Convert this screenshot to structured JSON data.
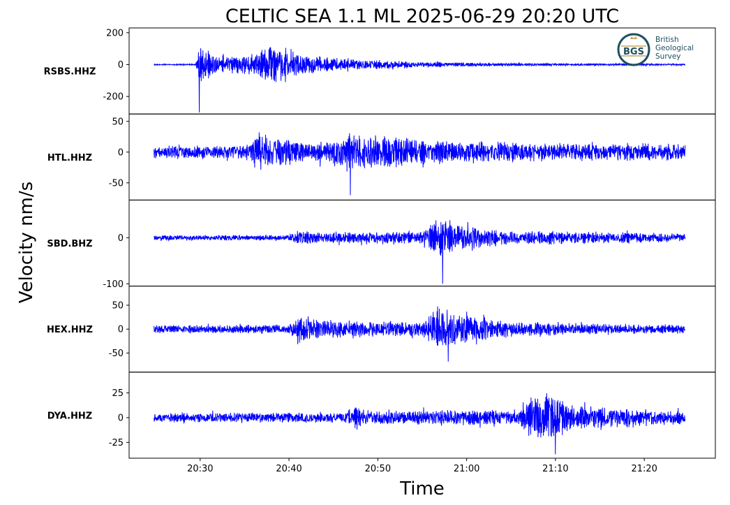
{
  "title": "CELTIC SEA 1.1 ML   2025-06-29 20:20 UTC",
  "xlabel": "Time",
  "ylabel": "Velocity nm/s",
  "logo": {
    "initials": "BGS",
    "line1": "British",
    "line2": "Geological",
    "line3": "Survey"
  },
  "colors": {
    "trace": "#0000ff",
    "frame": "#000000",
    "logo_ring": "#1d4f5e",
    "logo_accent": "#c9a55a"
  },
  "chart_data": {
    "type": "line",
    "xlim": [
      "20:22",
      "21:28"
    ],
    "x_ticks": [
      "20:30",
      "20:40",
      "20:50",
      "21:00",
      "21:10",
      "21:20"
    ],
    "grid": false,
    "legend": "none",
    "trace_start": "20:24.8",
    "trace_end": "21:24.6",
    "panels": [
      {
        "station": "RSBS.HHZ",
        "ylim": [
          -310,
          230
        ],
        "yticks": [
          {
            "value": 200,
            "label": "200"
          },
          {
            "value": 0,
            "label": "0"
          },
          {
            "value": -200,
            "label": "-200"
          }
        ],
        "noise": 4,
        "series": [
          {
            "time": "20:24.8",
            "amplitude": 5
          },
          {
            "time": "20:29.5",
            "amplitude": 5
          },
          {
            "time": "20:29.9",
            "amplitude": 200
          },
          {
            "time": "20:30.6",
            "amplitude": 150
          },
          {
            "time": "20:32",
            "amplitude": 80
          },
          {
            "time": "20:36",
            "amplitude": 100
          },
          {
            "time": "20:38",
            "amplitude": 200
          },
          {
            "time": "20:40",
            "amplitude": 160
          },
          {
            "time": "20:42",
            "amplitude": 90
          },
          {
            "time": "20:47",
            "amplitude": 55
          },
          {
            "time": "20:55",
            "amplitude": 28
          },
          {
            "time": "21:05",
            "amplitude": 14
          },
          {
            "time": "21:24.6",
            "amplitude": 7
          }
        ],
        "min_value": -300
      },
      {
        "station": "HTL.HHZ",
        "ylim": [
          -78,
          62
        ],
        "yticks": [
          {
            "value": 50,
            "label": "50"
          },
          {
            "value": 0,
            "label": "0"
          },
          {
            "value": -50,
            "label": "-50"
          }
        ],
        "noise": 14,
        "series": [
          {
            "time": "20:24.8",
            "amplitude": 16
          },
          {
            "time": "20:35.5",
            "amplitude": 18
          },
          {
            "time": "20:36.2",
            "amplitude": 55
          },
          {
            "time": "20:39",
            "amplitude": 35
          },
          {
            "time": "20:44",
            "amplitude": 28
          },
          {
            "time": "20:47",
            "amplitude": 50
          },
          {
            "time": "20:51",
            "amplitude": 40
          },
          {
            "time": "20:56",
            "amplitude": 28
          },
          {
            "time": "21:24.6",
            "amplitude": 20
          }
        ],
        "min_value": -70
      },
      {
        "station": "SBD.BHZ",
        "ylim": [
          -105,
          82
        ],
        "yticks": [
          {
            "value": 0,
            "label": "0"
          },
          {
            "value": -100,
            "label": "-100"
          }
        ],
        "noise": 7,
        "series": [
          {
            "time": "20:24.8",
            "amplitude": 9
          },
          {
            "time": "20:40",
            "amplitude": 9
          },
          {
            "time": "20:40.6",
            "amplitude": 24
          },
          {
            "time": "20:44",
            "amplitude": 18
          },
          {
            "time": "20:55",
            "amplitude": 22
          },
          {
            "time": "20:57",
            "amplitude": 78
          },
          {
            "time": "20:59",
            "amplitude": 50
          },
          {
            "time": "21:04",
            "amplitude": 25
          },
          {
            "time": "21:24.6",
            "amplitude": 15
          }
        ],
        "min_value": -100
      },
      {
        "station": "HEX.HHZ",
        "ylim": [
          -90,
          90
        ],
        "yticks": [
          {
            "value": 50,
            "label": "50"
          },
          {
            "value": 0,
            "label": "0"
          },
          {
            "value": -50,
            "label": "-50"
          }
        ],
        "noise": 8,
        "series": [
          {
            "time": "20:24.8",
            "amplitude": 13
          },
          {
            "time": "20:39.8",
            "amplitude": 14
          },
          {
            "time": "20:41",
            "amplitude": 42
          },
          {
            "time": "20:44",
            "amplitude": 30
          },
          {
            "time": "20:55",
            "amplitude": 24
          },
          {
            "time": "20:57",
            "amplitude": 78
          },
          {
            "time": "21:00",
            "amplitude": 55
          },
          {
            "time": "21:04",
            "amplitude": 25
          },
          {
            "time": "21:24.6",
            "amplitude": 12
          }
        ],
        "min_value": -68
      },
      {
        "station": "DYA.HHZ",
        "ylim": [
          -41,
          46
        ],
        "yticks": [
          {
            "value": 25,
            "label": "25"
          },
          {
            "value": 0,
            "label": "0"
          },
          {
            "value": -25,
            "label": "-25"
          }
        ],
        "noise": 5,
        "series": [
          {
            "time": "20:24.8",
            "amplitude": 7
          },
          {
            "time": "20:46.4",
            "amplitude": 8
          },
          {
            "time": "20:47",
            "amplitude": 20
          },
          {
            "time": "20:50",
            "amplitude": 12
          },
          {
            "time": "21:06",
            "amplitude": 12
          },
          {
            "time": "21:07",
            "amplitude": 30
          },
          {
            "time": "21:09",
            "amplitude": 40
          },
          {
            "time": "21:12",
            "amplitude": 20
          },
          {
            "time": "21:24.6",
            "amplitude": 10
          }
        ],
        "min_value": -37
      }
    ]
  }
}
